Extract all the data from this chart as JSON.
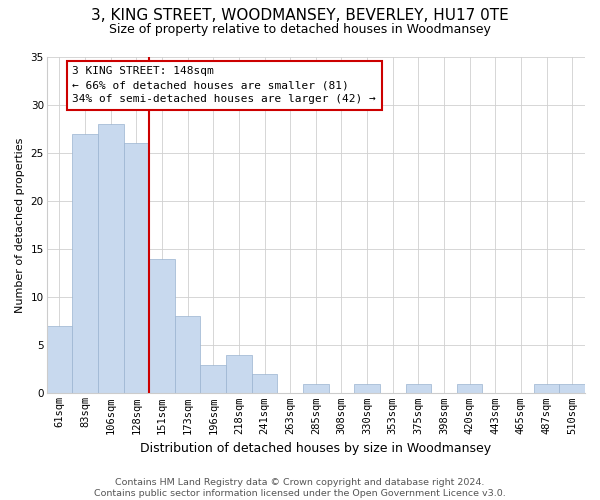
{
  "title": "3, KING STREET, WOODMANSEY, BEVERLEY, HU17 0TE",
  "subtitle": "Size of property relative to detached houses in Woodmansey",
  "xlabel": "Distribution of detached houses by size in Woodmansey",
  "ylabel": "Number of detached properties",
  "categories": [
    "61sqm",
    "83sqm",
    "106sqm",
    "128sqm",
    "151sqm",
    "173sqm",
    "196sqm",
    "218sqm",
    "241sqm",
    "263sqm",
    "285sqm",
    "308sqm",
    "330sqm",
    "353sqm",
    "375sqm",
    "398sqm",
    "420sqm",
    "443sqm",
    "465sqm",
    "487sqm",
    "510sqm"
  ],
  "values": [
    7,
    27,
    28,
    26,
    14,
    8,
    3,
    4,
    2,
    0,
    1,
    0,
    1,
    0,
    1,
    0,
    1,
    0,
    0,
    1,
    1
  ],
  "bar_color": "#c8d9ee",
  "bar_edge_color": "#9ab3d0",
  "vline_color": "#cc0000",
  "annotation_line1": "3 KING STREET: 148sqm",
  "annotation_line2": "← 66% of detached houses are smaller (81)",
  "annotation_line3": "34% of semi-detached houses are larger (42) →",
  "annotation_box_edge_color": "#cc0000",
  "ylim": [
    0,
    35
  ],
  "yticks": [
    0,
    5,
    10,
    15,
    20,
    25,
    30,
    35
  ],
  "footer1": "Contains HM Land Registry data © Crown copyright and database right 2024.",
  "footer2": "Contains public sector information licensed under the Open Government Licence v3.0.",
  "title_fontsize": 11,
  "subtitle_fontsize": 9,
  "xlabel_fontsize": 9,
  "ylabel_fontsize": 8,
  "tick_fontsize": 7.5,
  "annot_fontsize": 8,
  "footer_fontsize": 6.8
}
